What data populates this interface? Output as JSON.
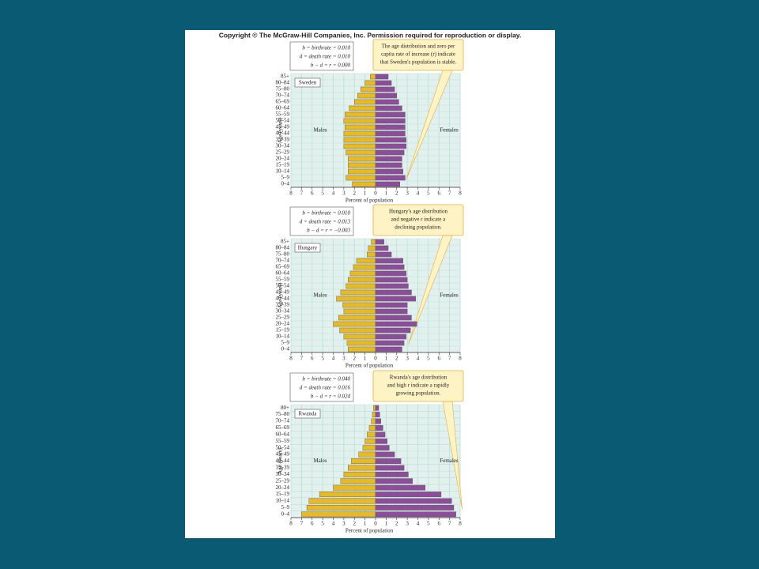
{
  "copyright": "Copyright © The McGraw-Hill Companies, Inc. Permission required for reproduction or display.",
  "chart_data": [
    {
      "type": "pyramid",
      "title": "Sweden",
      "categories": [
        "0–4",
        "5–9",
        "10–14",
        "15–19",
        "20–24",
        "25–29",
        "30–34",
        "35–39",
        "40–44",
        "45–49",
        "50–54",
        "55–59",
        "60–64",
        "65–69",
        "70–74",
        "75–80",
        "80–84",
        "85+"
      ],
      "series": [
        {
          "name": "Males",
          "color": "#e8b923",
          "values": [
            -2.2,
            -2.8,
            -2.6,
            -2.6,
            -2.6,
            -2.8,
            -3.0,
            -3.0,
            -3.0,
            -2.9,
            -3.0,
            -2.9,
            -2.5,
            -2.0,
            -1.7,
            -1.4,
            -1.0,
            -0.5
          ]
        },
        {
          "name": "Females",
          "color": "#8d4d9a",
          "values": [
            2.3,
            2.8,
            2.6,
            2.5,
            2.5,
            2.7,
            2.9,
            2.9,
            2.8,
            2.8,
            2.8,
            2.8,
            2.5,
            2.2,
            2.0,
            1.8,
            1.5,
            1.2
          ]
        }
      ],
      "xlim": [
        -8,
        8
      ],
      "xticks": [
        {
          "value": -8,
          "label": "8"
        },
        {
          "value": -7,
          "label": "7"
        },
        {
          "value": -6,
          "label": "6"
        },
        {
          "value": -5,
          "label": "5"
        },
        {
          "value": -4,
          "label": "4"
        },
        {
          "value": -3,
          "label": "3"
        },
        {
          "value": -2,
          "label": "2"
        },
        {
          "value": -1,
          "label": "1"
        },
        0,
        1,
        2,
        3,
        4,
        5,
        6,
        7,
        8
      ],
      "xlabel": "Percent of population",
      "ylabel": "Age (years)",
      "grid": true,
      "annotation": [
        "b = birthrate = 0.010",
        "d = death rate = 0.010",
        "b − d = r = 0.000"
      ],
      "callout": [
        "The age distribution and zero per",
        "capita rate of increase (r) indicate",
        "that Sweden's population is stable."
      ]
    },
    {
      "type": "pyramid",
      "title": "Hungary",
      "categories": [
        "0–4",
        "5–9",
        "10–14",
        "15–19",
        "20–24",
        "25–29",
        "30–34",
        "35–39",
        "40–44",
        "45–49",
        "50–54",
        "55–59",
        "60–64",
        "65–69",
        "70–74",
        "75–80",
        "80–84",
        "85+"
      ],
      "series": [
        {
          "name": "Males",
          "color": "#e8b923",
          "values": [
            -2.6,
            -2.7,
            -3.0,
            -3.4,
            -4.0,
            -3.5,
            -3.0,
            -3.1,
            -3.7,
            -3.3,
            -2.8,
            -2.6,
            -2.4,
            -2.1,
            -1.8,
            -0.8,
            -0.7,
            -0.4
          ]
        },
        {
          "name": "Females",
          "color": "#8d4d9a",
          "values": [
            2.5,
            2.7,
            2.9,
            3.3,
            3.9,
            3.4,
            3.0,
            3.0,
            3.8,
            3.4,
            3.1,
            3.0,
            2.9,
            2.7,
            2.6,
            1.5,
            1.2,
            0.8
          ]
        }
      ],
      "xlim": [
        -8,
        8
      ],
      "xticks": [
        {
          "value": -8,
          "label": "8"
        },
        {
          "value": -7,
          "label": "7"
        },
        {
          "value": -6,
          "label": "6"
        },
        {
          "value": -5,
          "label": "5"
        },
        {
          "value": -4,
          "label": "4"
        },
        {
          "value": -3,
          "label": "3"
        },
        {
          "value": -2,
          "label": "2"
        },
        {
          "value": -1,
          "label": "1"
        },
        0,
        1,
        2,
        3,
        4,
        5,
        6,
        7,
        8
      ],
      "xlabel": "Percent of population",
      "ylabel": "Age (years)",
      "grid": true,
      "annotation": [
        "b = birthrate = 0.010",
        "d = death rate = 0.013",
        "b − d = r = −0.003"
      ],
      "callout": [
        "Hungary's age distribution",
        "and negative r indicate a",
        "declining population."
      ]
    },
    {
      "type": "pyramid",
      "title": "Rwanda",
      "categories": [
        "0–4",
        "5–9",
        "10–14",
        "15–19",
        "20–24",
        "25–29",
        "30–34",
        "35–39",
        "40–44",
        "45–49",
        "50–54",
        "55–59",
        "60–64",
        "65–69",
        "70–74",
        "75–80",
        "80+"
      ],
      "series": [
        {
          "name": "Males",
          "color": "#e8b923",
          "values": [
            -7.0,
            -6.5,
            -6.3,
            -5.3,
            -4.0,
            -3.3,
            -3.0,
            -2.6,
            -2.3,
            -1.6,
            -1.2,
            -1.0,
            -0.8,
            -0.6,
            -0.4,
            -0.3,
            -0.2
          ]
        },
        {
          "name": "Females",
          "color": "#8d4d9a",
          "values": [
            7.6,
            7.4,
            7.2,
            6.2,
            4.7,
            3.5,
            3.1,
            2.7,
            2.4,
            1.8,
            1.3,
            1.1,
            0.9,
            0.7,
            0.5,
            0.4,
            0.3
          ]
        }
      ],
      "xlim": [
        -8,
        8
      ],
      "xticks": [
        {
          "value": -8,
          "label": "8"
        },
        {
          "value": -7,
          "label": "7"
        },
        {
          "value": -6,
          "label": "6"
        },
        {
          "value": -5,
          "label": "5"
        },
        {
          "value": -4,
          "label": "4"
        },
        {
          "value": -3,
          "label": "3"
        },
        {
          "value": -2,
          "label": "2"
        },
        {
          "value": -1,
          "label": "1"
        },
        0,
        1,
        2,
        3,
        4,
        5,
        6,
        7,
        8
      ],
      "xlabel": "Percent of population",
      "ylabel": "Age (years)",
      "grid": true,
      "annotation": [
        "b = birthrate = 0.040",
        "d = death rate = 0.016",
        "b − d = r = 0.024"
      ],
      "callout": [
        "Rwanda's age distribution",
        "and high r indicate a rapidly",
        "growing population."
      ]
    }
  ]
}
